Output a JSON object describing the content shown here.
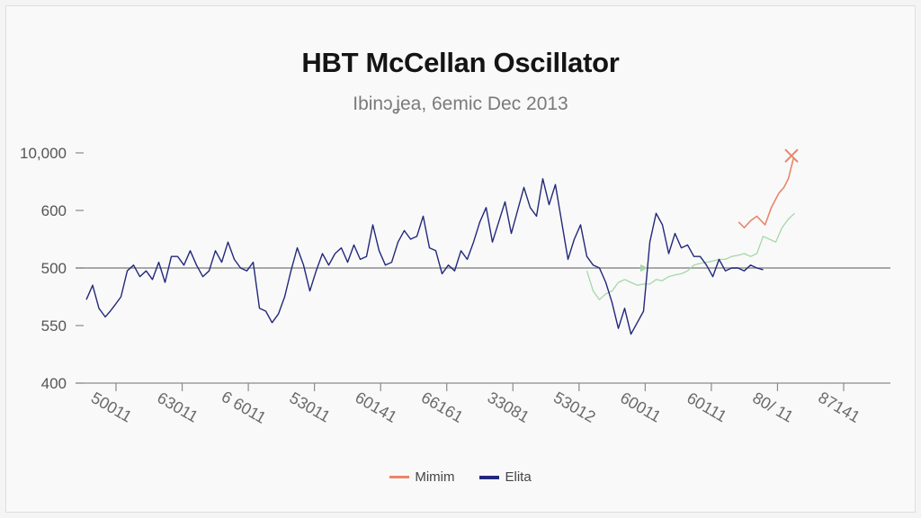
{
  "chart_data": {
    "type": "line",
    "title": "HBT McCellan Oscillator",
    "subtitle": "Ibinɔʝea, 6emic Dec 2013",
    "y_ticks": [
      {
        "label": "10,000",
        "value": 4
      },
      {
        "label": "600",
        "value": 3
      },
      {
        "label": "500",
        "value": 2
      },
      {
        "label": "550",
        "value": 1
      },
      {
        "label": "400",
        "value": 0
      }
    ],
    "ylim": [
      0,
      4
    ],
    "x_ticks": [
      "5001​1",
      "63011",
      "6 6011",
      "53011",
      "60141",
      "66161",
      "33081",
      "53012",
      "60011",
      "60111",
      "80/ 11",
      "87141"
    ],
    "xlim": [
      0,
      12
    ],
    "grid": false,
    "legend_position": "bottom-center",
    "colors": {
      "minimum": "#e8866a",
      "elita": "#22287a",
      "green": "#9fd6a4",
      "axis": "#8a8a8a",
      "baseline": "#8e8e8e"
    },
    "series": [
      {
        "name": "Mimim",
        "color": "#e8866a",
        "x": [
          10.36,
          10.45,
          10.55,
          10.65,
          10.78,
          10.88,
          11.0,
          11.08,
          11.15,
          11.23
        ],
        "y": [
          2.8,
          2.7,
          2.82,
          2.9,
          2.75,
          3.05,
          3.3,
          3.4,
          3.55,
          3.9
        ]
      },
      {
        "name": "Elita",
        "color": "#22287a",
        "x": [
          0,
          0.1,
          0.2,
          0.3,
          0.38,
          0.45,
          0.55,
          0.65,
          0.75,
          0.85,
          0.95,
          1.05,
          1.15,
          1.25,
          1.35,
          1.45,
          1.55,
          1.65,
          1.75,
          1.85,
          1.95,
          2.05,
          2.15,
          2.25,
          2.35,
          2.45,
          2.55,
          2.65,
          2.75,
          2.85,
          2.95,
          3.05,
          3.15,
          3.25,
          3.35,
          3.45,
          3.55,
          3.65,
          3.75,
          3.85,
          3.95,
          4.05,
          4.15,
          4.25,
          4.35,
          4.45,
          4.55,
          4.65,
          4.75,
          4.85,
          4.95,
          5.05,
          5.15,
          5.25,
          5.35,
          5.45,
          5.55,
          5.65,
          5.75,
          5.85,
          5.95,
          6.05,
          6.15,
          6.25,
          6.35,
          6.45,
          6.55,
          6.65,
          6.75,
          6.85,
          6.95,
          7.05,
          7.15,
          7.25,
          7.35,
          7.45,
          7.55,
          7.65,
          7.75,
          7.85,
          7.95,
          8.05,
          8.15,
          8.25,
          8.35,
          8.45,
          8.55,
          8.65,
          8.75,
          8.85,
          8.95,
          9.05,
          9.15,
          9.25,
          9.35,
          9.45,
          9.55,
          9.65,
          9.75,
          9.85,
          9.95,
          10.05,
          10.15,
          10.25,
          10.35,
          10.45,
          10.55,
          10.65,
          10.75
        ],
        "y": [
          1.45,
          1.7,
          1.3,
          1.15,
          1.25,
          1.35,
          1.5,
          1.95,
          2.05,
          1.85,
          1.95,
          1.8,
          2.1,
          1.75,
          2.2,
          2.2,
          2.05,
          2.3,
          2.05,
          1.85,
          1.95,
          2.3,
          2.1,
          2.45,
          2.15,
          2.0,
          1.95,
          2.1,
          1.3,
          1.25,
          1.05,
          1.2,
          1.5,
          1.95,
          2.35,
          2.05,
          1.6,
          1.95,
          2.25,
          2.05,
          2.25,
          2.35,
          2.1,
          2.4,
          2.15,
          2.2,
          2.75,
          2.3,
          2.05,
          2.1,
          2.45,
          2.65,
          2.5,
          2.55,
          2.9,
          2.35,
          2.3,
          1.9,
          2.05,
          1.95,
          2.3,
          2.15,
          2.45,
          2.8,
          3.05,
          2.45,
          2.8,
          3.15,
          2.6,
          3.0,
          3.4,
          3.05,
          2.9,
          3.55,
          3.1,
          3.45,
          2.8,
          2.15,
          2.5,
          2.75,
          2.2,
          2.05,
          2.0,
          1.75,
          1.4,
          0.95,
          1.3,
          0.85,
          1.05,
          1.25,
          2.45,
          2.95,
          2.75,
          2.25,
          2.6,
          2.35,
          2.4,
          2.2,
          2.2,
          2.05,
          1.85,
          2.15,
          1.95,
          2.0,
          2.0,
          1.95,
          2.05,
          2.0,
          1.97
        ]
      },
      {
        "x": [
          7.95,
          8.05,
          8.15,
          8.25,
          8.35,
          8.45,
          8.55,
          8.65,
          8.75,
          8.85,
          8.95,
          9.05,
          9.15,
          9.25,
          9.35,
          9.45,
          9.55,
          9.65,
          9.75,
          9.85,
          9.95,
          10.05,
          10.15,
          10.25,
          10.35,
          10.45,
          10.55,
          10.65,
          10.75,
          10.85,
          10.95,
          11.05,
          11.15,
          11.25
        ],
        "y": [
          1.95,
          1.6,
          1.45,
          1.55,
          1.6,
          1.75,
          1.8,
          1.75,
          1.7,
          1.72,
          1.72,
          1.8,
          1.78,
          1.85,
          1.88,
          1.9,
          1.95,
          2.05,
          2.08,
          2.1,
          2.12,
          2.15,
          2.15,
          2.2,
          2.22,
          2.25,
          2.2,
          2.25,
          2.55,
          2.5,
          2.45,
          2.7,
          2.85,
          2.95
        ]
      }
    ]
  }
}
